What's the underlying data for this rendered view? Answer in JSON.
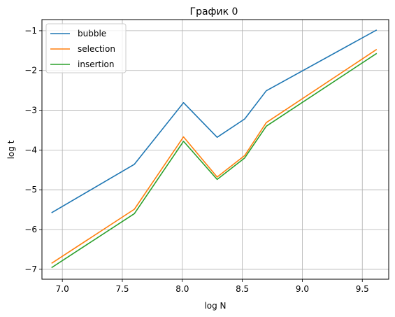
{
  "chart_data": {
    "type": "line",
    "title": "График 0",
    "xlabel": "log N",
    "ylabel": "log t",
    "xlim": [
      6.83,
      9.72
    ],
    "ylim": [
      -7.25,
      -0.72
    ],
    "xticks": [
      7.0,
      7.5,
      8.0,
      8.5,
      9.0,
      9.5
    ],
    "xtick_labels": [
      "7.0",
      "7.5",
      "8.0",
      "8.5",
      "9.0",
      "9.5"
    ],
    "yticks": [
      -7,
      -6,
      -5,
      -4,
      -3,
      -2,
      -1
    ],
    "ytick_labels": [
      "−7",
      "−6",
      "−5",
      "−4",
      "−3",
      "−2",
      "−1"
    ],
    "grid": true,
    "legend_position": "top-left",
    "x": [
      6.91,
      7.6,
      8.01,
      8.29,
      8.52,
      8.7,
      9.62
    ],
    "series": [
      {
        "name": "bubble",
        "color": "#1f77b4",
        "values": [
          -5.58,
          -4.36,
          -2.81,
          -3.68,
          -3.22,
          -2.51,
          -0.98
        ]
      },
      {
        "name": "selection",
        "color": "#ff7f0e",
        "values": [
          -6.85,
          -5.49,
          -3.67,
          -4.68,
          -4.14,
          -3.31,
          -1.47
        ]
      },
      {
        "name": "insertion",
        "color": "#2ca02c",
        "values": [
          -6.96,
          -5.6,
          -3.78,
          -4.74,
          -4.2,
          -3.4,
          -1.57
        ]
      }
    ]
  }
}
